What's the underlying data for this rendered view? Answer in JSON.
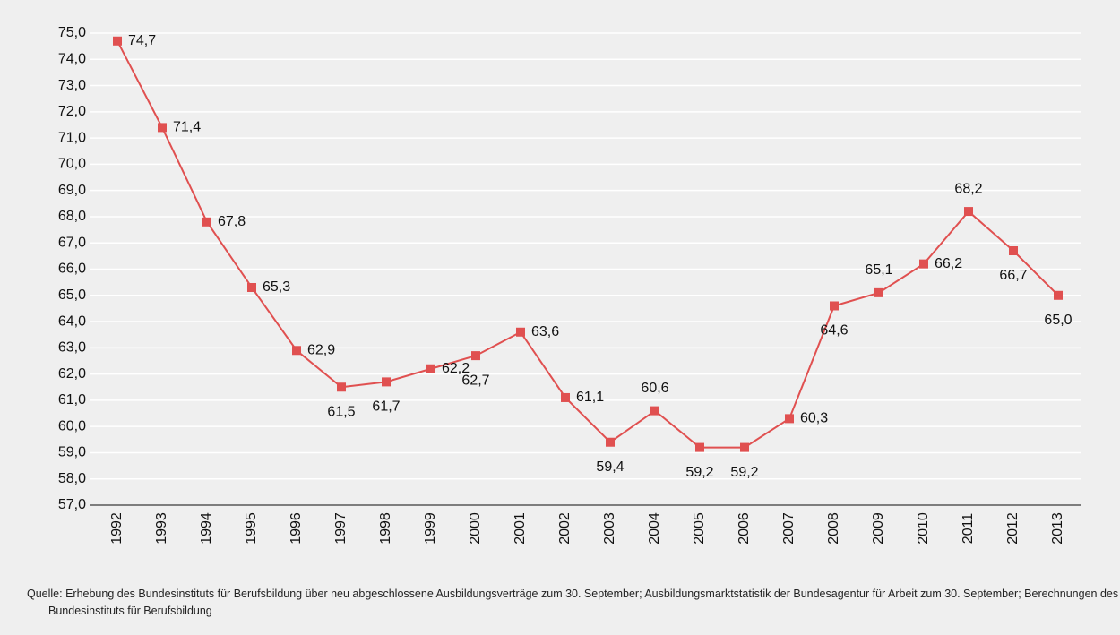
{
  "chart_data": {
    "type": "line",
    "categories": [
      "1992",
      "1993",
      "1994",
      "1995",
      "1996",
      "1997",
      "1998",
      "1999",
      "2000",
      "2001",
      "2002",
      "2003",
      "2004",
      "2005",
      "2006",
      "2007",
      "2008",
      "2009",
      "2010",
      "2011",
      "2012",
      "2013"
    ],
    "series": [
      {
        "color": "#e05050",
        "values": [
          74.7,
          71.4,
          67.8,
          65.3,
          62.9,
          61.5,
          61.7,
          62.2,
          62.7,
          63.6,
          61.1,
          59.4,
          60.6,
          59.2,
          59.2,
          60.3,
          64.6,
          65.1,
          66.2,
          68.2,
          66.7,
          65.0
        ],
        "value_labels": [
          "74,7",
          "71,4",
          "67,8",
          "65,3",
          "62,9",
          "61,5",
          "61,7",
          "62,2",
          "62,7",
          "63,6",
          "61,1",
          "59,4",
          "60,6",
          "59,2",
          "59,2",
          "60,3",
          "64,6",
          "65,1",
          "66,2",
          "68,2",
          "66,7",
          "65,0"
        ]
      }
    ],
    "ylim": [
      57,
      75
    ],
    "yticks": [
      {
        "value": 57,
        "label": "57,0"
      },
      {
        "value": 58,
        "label": "58,0"
      },
      {
        "value": 59,
        "label": "59,0"
      },
      {
        "value": 60,
        "label": "60,0"
      },
      {
        "value": 61,
        "label": "61,0"
      },
      {
        "value": 62,
        "label": "62,0"
      },
      {
        "value": 63,
        "label": "63,0"
      },
      {
        "value": 64,
        "label": "64,0"
      },
      {
        "value": 65,
        "label": "65,0"
      },
      {
        "value": 66,
        "label": "66,0"
      },
      {
        "value": 67,
        "label": "67,0"
      },
      {
        "value": 68,
        "label": "68,0"
      },
      {
        "value": 69,
        "label": "69,0"
      },
      {
        "value": 70,
        "label": "70,0"
      },
      {
        "value": 71,
        "label": "71,0"
      },
      {
        "value": 72,
        "label": "72,0"
      },
      {
        "value": 73,
        "label": "73,0"
      },
      {
        "value": 74,
        "label": "74,0"
      },
      {
        "value": 75,
        "label": "75,0"
      }
    ],
    "grid": true,
    "source": "Quelle: Erhebung des Bundesinstituts für Berufsbildung über neu abgeschlossene Ausbildungsverträge zum 30. September; Ausbildungsmarktstatistik der Bundesagentur für Arbeit zum 30. September; Berechnungen des Bundesinstituts für Berufsbildung"
  }
}
